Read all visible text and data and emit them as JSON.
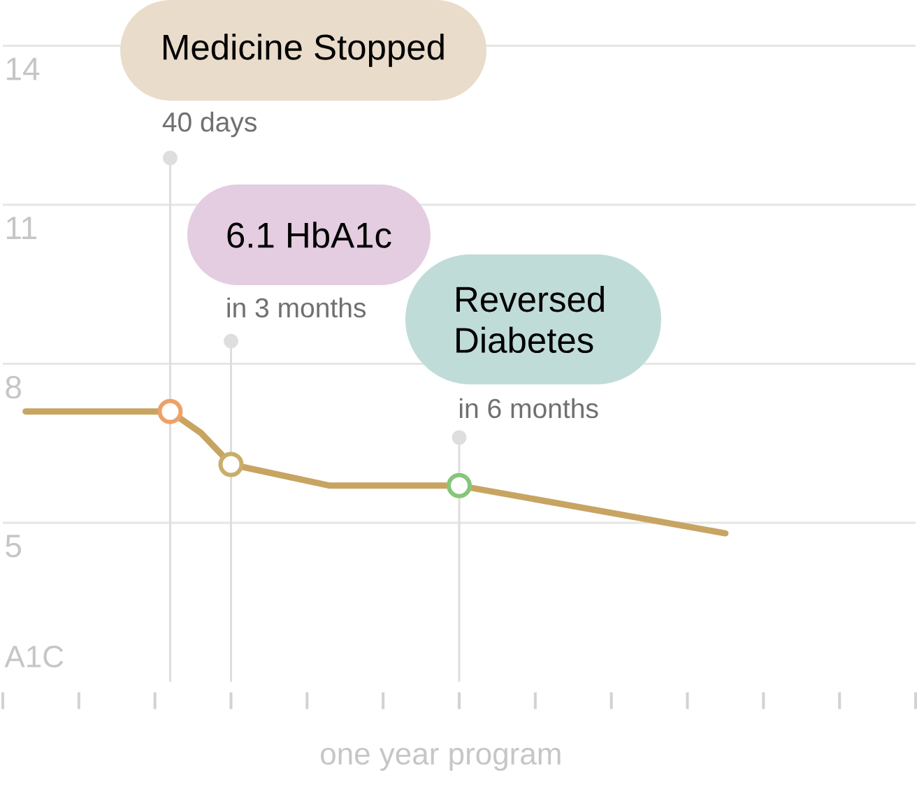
{
  "chart_data": {
    "type": "line",
    "xlabel": "one year program",
    "ylabel": "A1C",
    "xlim": [
      0,
      12
    ],
    "xticks": [
      {
        "value": 0,
        "label": null
      },
      {
        "value": 1,
        "label": null
      },
      {
        "value": 2,
        "label": null
      },
      {
        "value": 3,
        "label": null
      },
      {
        "value": 4,
        "label": null
      },
      {
        "value": 5,
        "label": null
      },
      {
        "value": 6,
        "label": null
      },
      {
        "value": 7,
        "label": null
      },
      {
        "value": 8,
        "label": null
      },
      {
        "value": 9,
        "label": null
      },
      {
        "value": 10,
        "label": null
      },
      {
        "value": 11,
        "label": null
      },
      {
        "value": 12,
        "label": null
      }
    ],
    "ylim": [
      2,
      14
    ],
    "yticks": [
      5,
      8,
      11,
      14
    ],
    "grid": "y",
    "series": [
      {
        "color": "#c8a462",
        "x": [
          0.3,
          2.2,
          2.6,
          3,
          4.3,
          6,
          9.5
        ],
        "values": [
          7.1,
          7.1,
          6.7,
          6.1,
          5.7,
          5.7,
          4.8
        ]
      },
      {
        "type": "scatter",
        "x": [
          2.2,
          3,
          6
        ],
        "values": [
          7.1,
          6.1,
          5.7
        ],
        "colors": [
          "#eea166",
          "#c9ae69",
          "#86c679"
        ],
        "marker": "circle"
      }
    ],
    "ref_lines": [
      {
        "axis": "x",
        "value": 2.2,
        "label": "40 days",
        "color": "#dedede"
      },
      {
        "axis": "x",
        "value": 3,
        "label": "in 3 months",
        "color": "#dedede"
      },
      {
        "axis": "x",
        "value": 6,
        "label": "in 6 months",
        "color": "#dedede"
      }
    ],
    "annotations": [
      "Medicine Stopped",
      "6.1 HbA1c",
      "Reversed Diabetes"
    ]
  }
}
